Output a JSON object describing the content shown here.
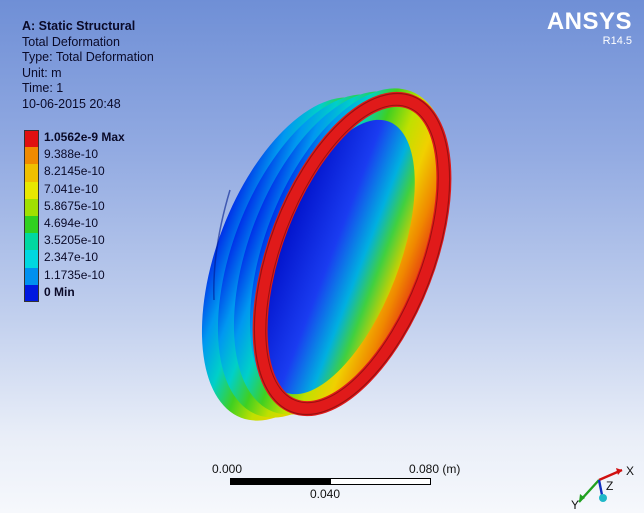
{
  "header": {
    "analysis_title": "A: Static Structural",
    "result_name": "Total Deformation",
    "result_type": "Type: Total Deformation",
    "unit": "Unit: m",
    "time": "Time: 1",
    "date": "10-06-2015 20:48"
  },
  "branding": {
    "logo": "ANSYS",
    "version": "R14.5"
  },
  "legend": {
    "entries": [
      {
        "label": "1.0562e-9 Max",
        "color": "#e01010",
        "bold": true
      },
      {
        "label": "9.388e-10",
        "color": "#f08a00"
      },
      {
        "label": "8.2145e-10",
        "color": "#f0c000"
      },
      {
        "label": "7.041e-10",
        "color": "#e8e800"
      },
      {
        "label": "5.8675e-10",
        "color": "#a0e000"
      },
      {
        "label": "4.694e-10",
        "color": "#30d020"
      },
      {
        "label": "3.5205e-10",
        "color": "#00d8a0"
      },
      {
        "label": "2.347e-10",
        "color": "#00d8e0"
      },
      {
        "label": "1.1735e-10",
        "color": "#0090f0"
      },
      {
        "label": "0 Min",
        "color": "#0018e0",
        "bold": true
      }
    ]
  },
  "scale_bar": {
    "start": "0.000",
    "mid": "0.040",
    "end": "0.080 (m)"
  },
  "triad": {
    "x": "X",
    "y": "Y",
    "z": "Z"
  },
  "colors": {
    "max_red": "#e01010",
    "min_blue": "#0018e0",
    "background_top": "#6f8fd6",
    "background_bottom": "#f6f8fc"
  }
}
